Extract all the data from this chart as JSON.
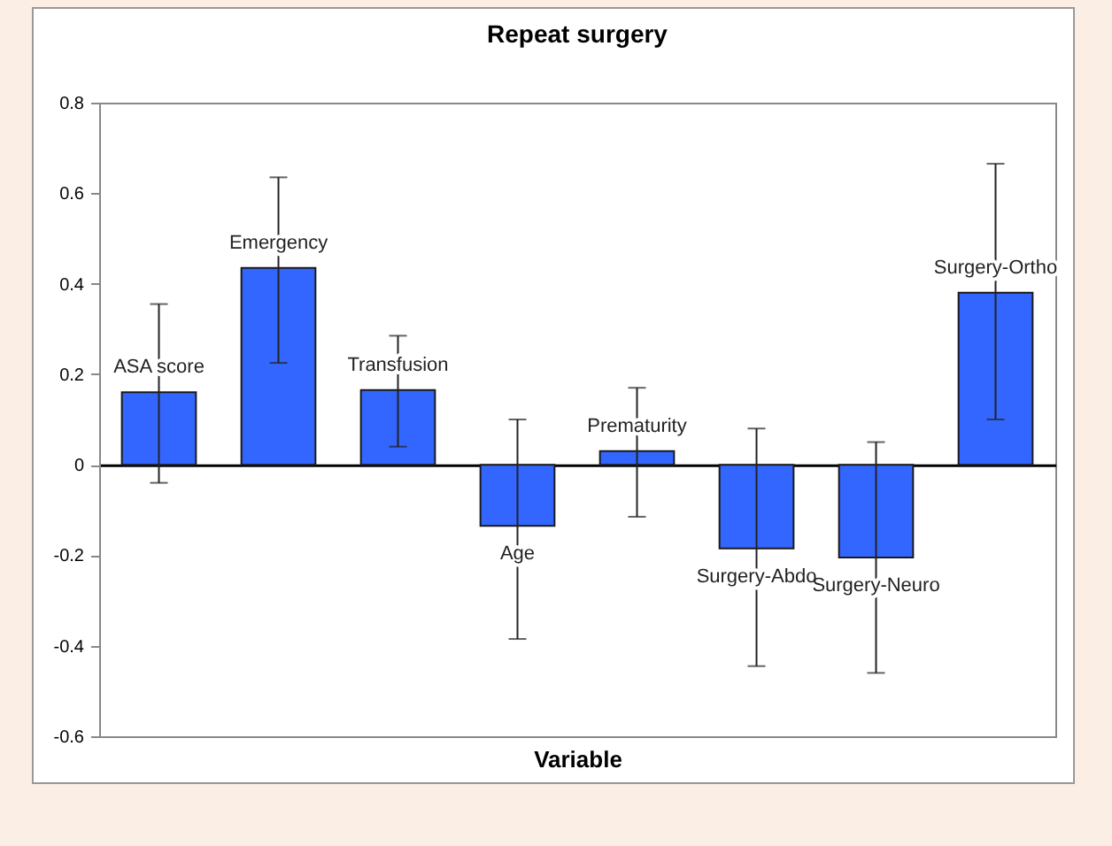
{
  "chart_data": {
    "type": "bar",
    "title": "Repeat surgery",
    "xlabel": "Variable",
    "categories": [
      "ASA score",
      "Emergency",
      "Transfusion",
      "Age",
      "Prematurity",
      "Surgery-Abdo",
      "Surgery-Neuro",
      "Surgery-Ortho"
    ],
    "values": [
      0.16,
      0.435,
      0.165,
      -0.135,
      0.03,
      -0.185,
      -0.205,
      0.38
    ],
    "errors": [
      [
        -0.04,
        0.355
      ],
      [
        0.225,
        0.635
      ],
      [
        0.04,
        0.285
      ],
      [
        -0.385,
        0.1
      ],
      [
        -0.115,
        0.17
      ],
      [
        -0.445,
        0.08
      ],
      [
        -0.46,
        0.05
      ],
      [
        0.1,
        0.665
      ]
    ],
    "color": "#3366ff",
    "ylim": [
      -0.6,
      0.8
    ],
    "yticks": [
      -0.6,
      -0.4,
      -0.2,
      0,
      0.2,
      0.4,
      0.6,
      0.8
    ]
  }
}
